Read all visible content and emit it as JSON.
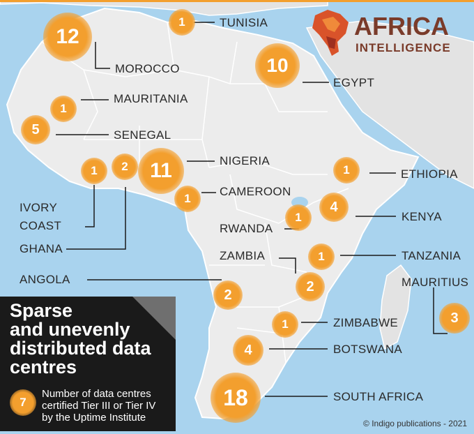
{
  "logo": {
    "line1": "AFRICA",
    "line2": "INTELLIGENCE"
  },
  "panel": {
    "title_lines": [
      "Sparse",
      "and unevenly",
      "distributed data",
      "centres"
    ],
    "legend_number": "7",
    "legend_lines": [
      "Number of data centres",
      "certified Tier III or Tier IV",
      "by the Uptime Institute"
    ]
  },
  "credit": "© Indigo publications - 2021",
  "countries": [
    {
      "id": "tunisia",
      "label": "TUNISIA",
      "count": "1"
    },
    {
      "id": "morocco",
      "label": "MOROCCO",
      "count": "12"
    },
    {
      "id": "egypt",
      "label": "EGYPT",
      "count": "10"
    },
    {
      "id": "mauritania",
      "label": "MAURITANIA",
      "count": "1"
    },
    {
      "id": "senegal",
      "label": "SENEGAL",
      "count": "5"
    },
    {
      "id": "nigeria",
      "label": "NIGERIA",
      "count": "11"
    },
    {
      "id": "ethiopia",
      "label": "ETHIOPIA",
      "count": "1"
    },
    {
      "id": "cameroon",
      "label": "CAMEROON",
      "count": "1"
    },
    {
      "id": "ivory-coast",
      "label": "IVORY COAST",
      "label_lines": [
        "IVORY",
        "COAST"
      ],
      "count": "1"
    },
    {
      "id": "ghana",
      "label": "GHANA",
      "count": "2"
    },
    {
      "id": "kenya",
      "label": "KENYA",
      "count": "4"
    },
    {
      "id": "rwanda",
      "label": "RWANDA",
      "count": "1"
    },
    {
      "id": "zambia",
      "label": "ZAMBIA",
      "count": "2"
    },
    {
      "id": "tanzania",
      "label": "TANZANIA",
      "count": "1"
    },
    {
      "id": "angola",
      "label": "ANGOLA",
      "count": "2"
    },
    {
      "id": "mauritius",
      "label": "MAURITIUS",
      "count": "3"
    },
    {
      "id": "zimbabwe",
      "label": "ZIMBABWE",
      "count": "1"
    },
    {
      "id": "botswana",
      "label": "BOTSWANA",
      "count": "4"
    },
    {
      "id": "south-africa",
      "label": "SOUTH AFRICA",
      "count": "18"
    }
  ],
  "colors": {
    "sea": "#a9d3ee",
    "land": "#ececec",
    "bubble": "#f39f2e",
    "panel": "#1a1a1a",
    "accent": "#e8482e"
  }
}
